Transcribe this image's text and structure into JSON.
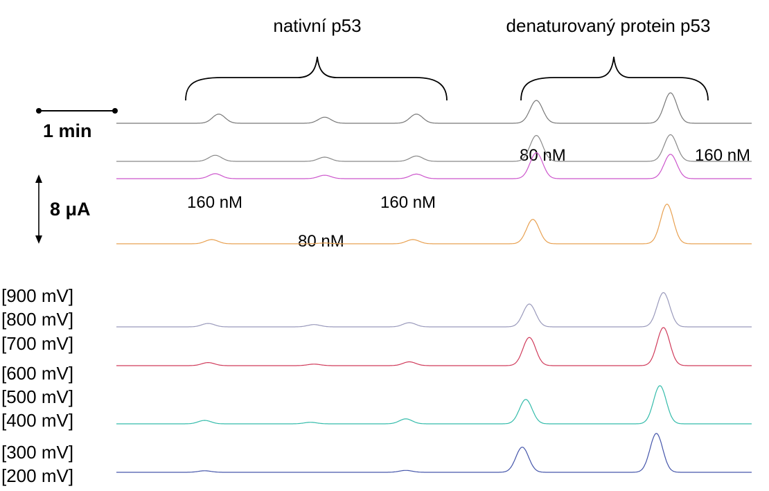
{
  "chart_data": {
    "type": "line",
    "title": "",
    "xlabel": "",
    "ylabel": "",
    "scale_bars": {
      "time": "1 min",
      "current": "8 μA"
    },
    "groups": [
      {
        "name": "nativní p53"
      },
      {
        "name": "denaturovaný protein p53"
      }
    ],
    "annotations": {
      "denatured_peak_1": "80 nM",
      "denatured_peak_2": "160 nM",
      "native_peak_1": "160 nM",
      "native_peak_2": "80 nM",
      "native_peak_3": "160 nM"
    },
    "potential_labels": [
      "[900 mV]",
      "[800 mV]",
      "[700 mV]",
      "[600 mV]",
      "[500 mV]",
      "[400 mV]",
      "[300 mV]",
      "[200 mV]"
    ],
    "x_range_min": [
      0,
      9
    ],
    "peak_width_min": 0.09,
    "traces": [
      {
        "color": "#777777",
        "peaks": [
          [
            1.45,
            1.2
          ],
          [
            2.95,
            0.8
          ],
          [
            4.25,
            1.2
          ],
          [
            5.95,
            3.0
          ],
          [
            7.85,
            4.0
          ]
        ]
      },
      {
        "color": "#888888",
        "peaks": [
          [
            1.4,
            0.8
          ],
          [
            2.95,
            0.55
          ],
          [
            4.25,
            0.7
          ],
          [
            5.95,
            3.4
          ],
          [
            7.85,
            3.5
          ]
        ]
      },
      {
        "color": "#cc55cc",
        "peaks": [
          [
            1.4,
            0.65
          ],
          [
            2.95,
            0.45
          ],
          [
            4.25,
            0.6
          ],
          [
            5.95,
            3.4
          ],
          [
            7.85,
            3.2
          ]
        ]
      },
      {
        "color": "#e8a050",
        "peaks": [
          [
            1.35,
            0.55
          ],
          [
            2.95,
            0.1
          ],
          [
            4.2,
            0.55
          ],
          [
            5.9,
            3.2
          ],
          [
            7.8,
            5.2
          ]
        ]
      },
      {
        "color": "#9999bb",
        "peaks": [
          [
            1.3,
            0.45
          ],
          [
            2.8,
            0.3
          ],
          [
            4.15,
            0.55
          ],
          [
            5.85,
            3.0
          ],
          [
            7.75,
            4.5
          ]
        ]
      },
      {
        "color": "#d03a5a",
        "peaks": [
          [
            1.3,
            0.4
          ],
          [
            2.8,
            0.2
          ],
          [
            4.15,
            0.5
          ],
          [
            5.85,
            3.7
          ],
          [
            7.75,
            5.0
          ]
        ]
      },
      {
        "color": "#33bbaa",
        "peaks": [
          [
            1.25,
            0.45
          ],
          [
            2.75,
            0.2
          ],
          [
            4.1,
            0.65
          ],
          [
            5.8,
            3.2
          ],
          [
            7.7,
            5.0
          ]
        ]
      },
      {
        "color": "#4455aa",
        "peaks": [
          [
            1.25,
            0.2
          ],
          [
            2.75,
            0.0
          ],
          [
            4.1,
            0.25
          ],
          [
            5.75,
            3.3
          ],
          [
            7.65,
            5.1
          ]
        ]
      }
    ]
  }
}
